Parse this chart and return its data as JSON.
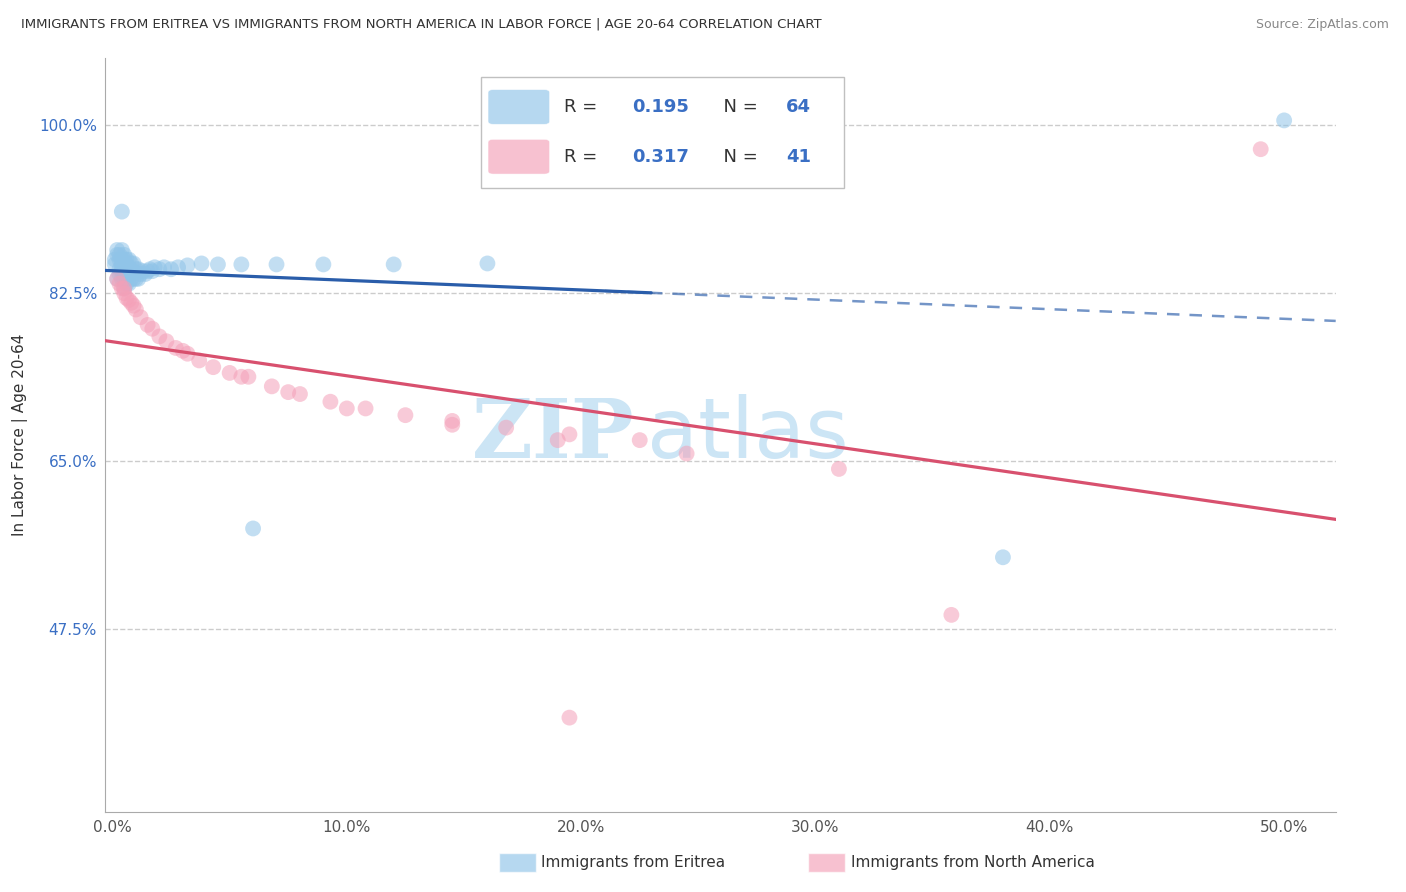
{
  "title": "IMMIGRANTS FROM ERITREA VS IMMIGRANTS FROM NORTH AMERICA IN LABOR FORCE | AGE 20-64 CORRELATION CHART",
  "source": "Source: ZipAtlas.com",
  "ylabel": "In Labor Force | Age 20-64",
  "x_ticks": [
    0.0,
    0.1,
    0.2,
    0.3,
    0.4,
    0.5
  ],
  "x_tick_labels": [
    "0.0%",
    "10.0%",
    "20.0%",
    "30.0%",
    "40.0%",
    "50.0%"
  ],
  "y_ticks": [
    0.475,
    0.65,
    0.825,
    1.0
  ],
  "y_tick_labels": [
    "47.5%",
    "65.0%",
    "82.5%",
    "100.0%"
  ],
  "xlim": [
    -0.003,
    0.522
  ],
  "ylim": [
    0.285,
    1.07
  ],
  "legend_labels": [
    "Immigrants from Eritrea",
    "Immigrants from North America"
  ],
  "R_blue": 0.195,
  "N_blue": 64,
  "R_pink": 0.317,
  "N_pink": 41,
  "blue_color": "#90c4e8",
  "pink_color": "#f4a0b8",
  "blue_line_color": "#2a5daa",
  "pink_line_color": "#d8506e",
  "watermark_text": "ZIPatlas",
  "watermark_color": "#cce5f5",
  "blue_scatter_x": [
    0.001,
    0.001,
    0.002,
    0.002,
    0.002,
    0.003,
    0.003,
    0.003,
    0.003,
    0.004,
    0.004,
    0.004,
    0.004,
    0.004,
    0.005,
    0.005,
    0.005,
    0.005,
    0.005,
    0.005,
    0.005,
    0.006,
    0.006,
    0.006,
    0.006,
    0.006,
    0.006,
    0.007,
    0.007,
    0.007,
    0.007,
    0.008,
    0.008,
    0.008,
    0.009,
    0.009,
    0.009,
    0.01,
    0.01,
    0.011,
    0.011,
    0.012,
    0.013,
    0.014,
    0.015,
    0.016,
    0.017,
    0.018,
    0.02,
    0.022,
    0.025,
    0.028,
    0.032,
    0.038,
    0.045,
    0.055,
    0.07,
    0.09,
    0.12,
    0.16,
    0.004,
    0.06,
    0.38,
    0.5
  ],
  "blue_scatter_y": [
    0.855,
    0.86,
    0.84,
    0.865,
    0.87,
    0.845,
    0.85,
    0.86,
    0.865,
    0.84,
    0.85,
    0.855,
    0.86,
    0.87,
    0.83,
    0.84,
    0.845,
    0.85,
    0.855,
    0.86,
    0.865,
    0.835,
    0.84,
    0.845,
    0.85,
    0.855,
    0.86,
    0.835,
    0.845,
    0.852,
    0.86,
    0.84,
    0.848,
    0.856,
    0.84,
    0.848,
    0.856,
    0.84,
    0.85,
    0.84,
    0.85,
    0.845,
    0.848,
    0.845,
    0.848,
    0.85,
    0.848,
    0.852,
    0.85,
    0.852,
    0.85,
    0.852,
    0.854,
    0.856,
    0.855,
    0.855,
    0.855,
    0.855,
    0.855,
    0.856,
    0.91,
    0.58,
    0.55,
    1.005
  ],
  "pink_scatter_x": [
    0.002,
    0.003,
    0.004,
    0.005,
    0.005,
    0.006,
    0.007,
    0.008,
    0.009,
    0.01,
    0.012,
    0.015,
    0.017,
    0.02,
    0.023,
    0.027,
    0.032,
    0.037,
    0.043,
    0.05,
    0.058,
    0.068,
    0.08,
    0.093,
    0.108,
    0.125,
    0.145,
    0.168,
    0.195,
    0.225,
    0.03,
    0.055,
    0.075,
    0.1,
    0.145,
    0.19,
    0.245,
    0.31,
    0.358,
    0.49,
    0.195
  ],
  "pink_scatter_y": [
    0.84,
    0.835,
    0.83,
    0.825,
    0.83,
    0.82,
    0.818,
    0.815,
    0.812,
    0.808,
    0.8,
    0.792,
    0.788,
    0.78,
    0.775,
    0.768,
    0.762,
    0.755,
    0.748,
    0.742,
    0.738,
    0.728,
    0.72,
    0.712,
    0.705,
    0.698,
    0.692,
    0.685,
    0.678,
    0.672,
    0.765,
    0.738,
    0.722,
    0.705,
    0.688,
    0.672,
    0.658,
    0.642,
    0.49,
    0.975,
    0.383
  ]
}
